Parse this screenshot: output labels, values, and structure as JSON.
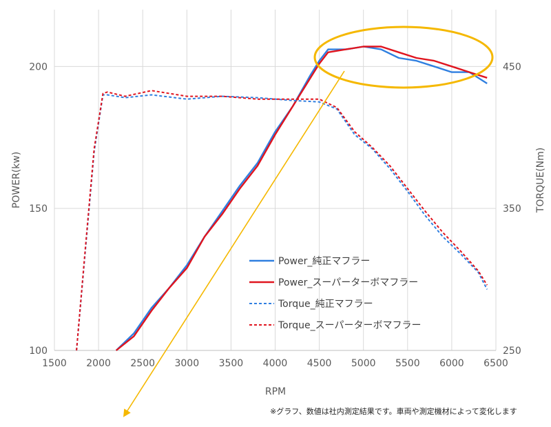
{
  "chart_data": {
    "type": "line",
    "xlabel": "RPM",
    "ylabel": "POWER(kw)",
    "y2label": "TORQUE(Nm)",
    "xlim": [
      1500,
      6500
    ],
    "ylim": [
      100,
      220
    ],
    "y2lim": [
      250,
      490
    ],
    "xticks": [
      1500,
      2000,
      2500,
      3000,
      3500,
      4000,
      4500,
      5000,
      5500,
      6000,
      6500
    ],
    "yticks": [
      100,
      150,
      200
    ],
    "y2ticks": [
      250,
      350,
      450
    ],
    "grid": true,
    "legend_position": "lower-center",
    "colors": {
      "blue": "#2f7fe0",
      "red": "#e0141e",
      "highlight": "#f5b800"
    },
    "series": [
      {
        "name": "Power_純正マフラー",
        "axis": "left",
        "style": "solid",
        "color": "#2f7fe0",
        "x": [
          2200,
          2400,
          2600,
          2800,
          3000,
          3200,
          3400,
          3600,
          3800,
          4000,
          4200,
          4400,
          4500,
          4600,
          4800,
          5000,
          5200,
          5400,
          5600,
          5800,
          6000,
          6200,
          6400
        ],
        "y": [
          100,
          106,
          115,
          122,
          130,
          140,
          149,
          158,
          166,
          177,
          186,
          197,
          202,
          206,
          206,
          207,
          206,
          203,
          202,
          200,
          198,
          198,
          194
        ]
      },
      {
        "name": "Power_スーパーターボマフラー",
        "axis": "left",
        "style": "solid",
        "color": "#e0141e",
        "x": [
          2200,
          2400,
          2600,
          2800,
          3000,
          3200,
          3400,
          3600,
          3800,
          4000,
          4200,
          4400,
          4500,
          4600,
          4800,
          5000,
          5200,
          5400,
          5600,
          5800,
          6000,
          6200,
          6400
        ],
        "y": [
          99,
          105,
          114,
          122,
          129,
          140,
          148,
          157,
          165,
          176,
          186,
          196,
          201,
          205,
          206,
          207,
          207,
          205,
          203,
          202,
          200,
          198,
          196
        ]
      },
      {
        "name": "Torque_純正マフラー",
        "axis": "right",
        "style": "dashed",
        "color": "#2f7fe0",
        "x": [
          1750,
          1850,
          1950,
          2050,
          2100,
          2300,
          2600,
          3000,
          3400,
          3800,
          4200,
          4500,
          4700,
          4900,
          5100,
          5300,
          5500,
          5700,
          5900,
          6100,
          6300,
          6400
        ],
        "y": [
          250,
          320,
          390,
          430,
          430,
          428,
          430,
          427,
          429,
          428,
          426,
          425,
          420,
          402,
          392,
          378,
          362,
          345,
          330,
          318,
          305,
          293
        ]
      },
      {
        "name": "Torque_スーパーターボマフラー",
        "axis": "right",
        "style": "dashed",
        "color": "#e0141e",
        "x": [
          1750,
          1850,
          1950,
          2050,
          2100,
          2300,
          2600,
          3000,
          3400,
          3800,
          4200,
          4500,
          4700,
          4900,
          5100,
          5300,
          5500,
          5700,
          5900,
          6100,
          6300,
          6400
        ],
        "y": [
          250,
          322,
          392,
          431,
          432,
          429,
          433,
          429,
          429,
          427,
          427,
          427,
          421,
          404,
          393,
          380,
          364,
          348,
          333,
          320,
          306,
          296
        ]
      }
    ]
  },
  "note": "※グラフ、数値は社内測定結果です。車両や測定機材によって変化します"
}
